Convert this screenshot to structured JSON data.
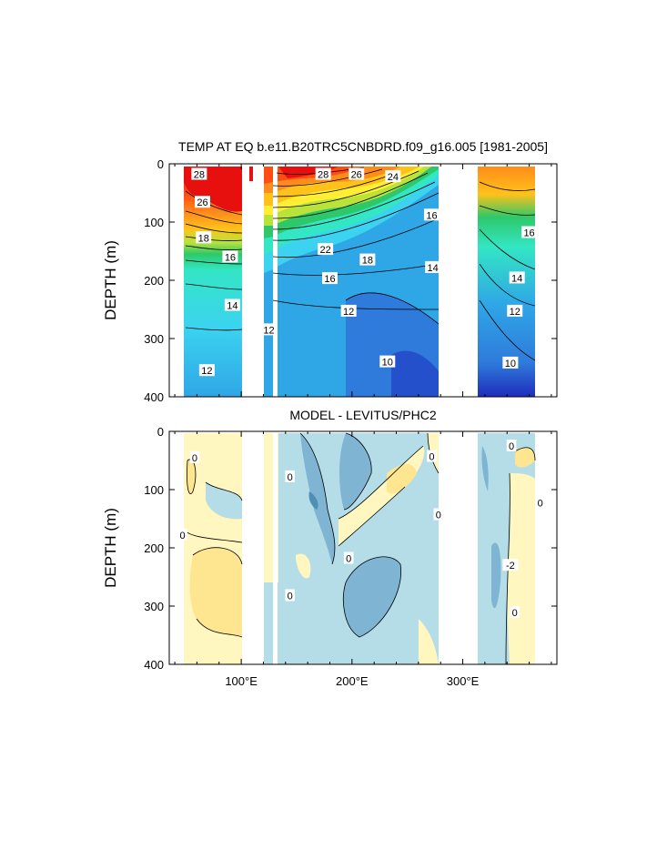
{
  "chart_data": [
    {
      "type": "heatmap",
      "title": "TEMP AT EQ b.e11.B20TRC5CNBDRD.f09_g16.005 [1981-2005]",
      "ylabel": "DEPTH (m)",
      "xlabel": "",
      "x_range_degE": [
        35,
        385
      ],
      "y_range_m": [
        0,
        400
      ],
      "y_inverted": true,
      "yticks": [
        "0",
        "100",
        "200",
        "300",
        "400"
      ],
      "xticks": [],
      "color_scale": [
        "#1e2dbd",
        "#2f7bdb",
        "#2fa6e6",
        "#3bd3f0",
        "#33e6c4",
        "#2ec86a",
        "#b9e33a",
        "#ffee33",
        "#ffc21a",
        "#ff8c1a",
        "#ff4d14",
        "#e80f0f"
      ],
      "missing_data_lon_ranges": [
        [
          99,
          106
        ],
        [
          116,
          121
        ],
        [
          126,
          131
        ],
        [
          278,
          313
        ]
      ],
      "contour_levels": [
        10,
        12,
        14,
        16,
        18,
        20,
        22,
        24,
        26,
        28
      ],
      "contour_labels": [
        {
          "text": "28",
          "lon": 62,
          "depth": 18
        },
        {
          "text": "26",
          "lon": 65,
          "depth": 66
        },
        {
          "text": "18",
          "lon": 66,
          "depth": 127
        },
        {
          "text": "16",
          "lon": 90,
          "depth": 160
        },
        {
          "text": "14",
          "lon": 92,
          "depth": 243
        },
        {
          "text": "12",
          "lon": 69,
          "depth": 355
        },
        {
          "text": "12",
          "lon": 125,
          "depth": 285
        },
        {
          "text": "28",
          "lon": 174,
          "depth": 18
        },
        {
          "text": "26",
          "lon": 204,
          "depth": 18
        },
        {
          "text": "24",
          "lon": 237,
          "depth": 22
        },
        {
          "text": "16",
          "lon": 272,
          "depth": 88
        },
        {
          "text": "22",
          "lon": 176,
          "depth": 147
        },
        {
          "text": "18",
          "lon": 214,
          "depth": 165
        },
        {
          "text": "16",
          "lon": 180,
          "depth": 197
        },
        {
          "text": "14",
          "lon": 273,
          "depth": 178
        },
        {
          "text": "12",
          "lon": 197,
          "depth": 253
        },
        {
          "text": "10",
          "lon": 232,
          "depth": 340
        },
        {
          "text": "16",
          "lon": 360,
          "depth": 118
        },
        {
          "text": "14",
          "lon": 349,
          "depth": 196
        },
        {
          "text": "12",
          "lon": 347,
          "depth": 253
        },
        {
          "text": "10",
          "lon": 343,
          "depth": 342
        }
      ]
    },
    {
      "type": "heatmap",
      "title": "MODEL - LEVITUS/PHC2",
      "ylabel": "DEPTH (m)",
      "xlabel": "",
      "x_range_degE": [
        35,
        385
      ],
      "y_range_m": [
        0,
        400
      ],
      "y_inverted": true,
      "yticks": [
        "0",
        "100",
        "200",
        "300",
        "400"
      ],
      "xticks": [
        "100°E",
        "200°E",
        "300°E"
      ],
      "x_tick_values": [
        100,
        200,
        300
      ],
      "color_scale": {
        "-4": "#4f8fb5",
        "-2": "#7fb5d3",
        "0": "#b5dde8",
        "2": "#fff6c0",
        "4": "#fde68f"
      },
      "missing_data_lon_ranges": [
        [
          99,
          116
        ],
        [
          126,
          131
        ],
        [
          278,
          313
        ]
      ],
      "contour_levels": [
        -4,
        -2,
        0,
        2
      ],
      "contour_labels": [
        {
          "text": "0",
          "lon": 58,
          "depth": 45
        },
        {
          "text": "0",
          "lon": 47,
          "depth": 178
        },
        {
          "text": "0",
          "lon": 144,
          "depth": 78
        },
        {
          "text": "0",
          "lon": 144,
          "depth": 282
        },
        {
          "text": "0",
          "lon": 197,
          "depth": 218
        },
        {
          "text": "0",
          "lon": 272,
          "depth": 43
        },
        {
          "text": "0",
          "lon": 278,
          "depth": 143
        },
        {
          "text": "0",
          "lon": 344,
          "depth": 25
        },
        {
          "text": "0",
          "lon": 370,
          "depth": 123
        },
        {
          "text": "-2",
          "lon": 343,
          "depth": 230
        },
        {
          "text": "0",
          "lon": 347,
          "depth": 311
        }
      ]
    }
  ]
}
